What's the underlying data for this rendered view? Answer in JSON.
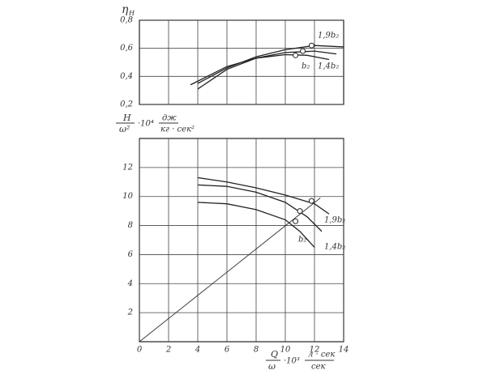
{
  "chart_data": [
    {
      "type": "line",
      "y_label": "η",
      "y_label_sub": "H",
      "xlim": [
        0,
        14
      ],
      "xticks": [
        2,
        4,
        6,
        8,
        10,
        12
      ],
      "xtick_labels": false,
      "ylim": [
        0.2,
        0.8
      ],
      "yticks": [
        {
          "value": 0.2,
          "label": "0,2"
        },
        {
          "value": 0.4,
          "label": "0,4"
        },
        {
          "value": 0.6,
          "label": "0,6"
        },
        {
          "value": 0.8,
          "label": "0,8"
        }
      ],
      "grid": true,
      "series": [
        {
          "name": "1,9b₂",
          "color": "#222",
          "x": [
            4,
            6,
            8,
            10,
            12,
            14
          ],
          "values": [
            0.35,
            0.46,
            0.54,
            0.59,
            0.62,
            0.61
          ],
          "marker": {
            "x": 11.8,
            "y": 0.62
          }
        },
        {
          "name": "1,4b₂",
          "color": "#222",
          "x": [
            4,
            6,
            8,
            10,
            12,
            13.5
          ],
          "values": [
            0.31,
            0.45,
            0.53,
            0.57,
            0.58,
            0.56
          ],
          "marker": {
            "x": 11.2,
            "y": 0.58
          }
        },
        {
          "name": "b₂",
          "color": "#222",
          "x": [
            3.5,
            6,
            8,
            10,
            11.5,
            13
          ],
          "values": [
            0.34,
            0.47,
            0.53,
            0.555,
            0.55,
            0.52
          ],
          "marker": {
            "x": 10.7,
            "y": 0.55
          }
        }
      ]
    },
    {
      "type": "line",
      "y_label": "H",
      "y_label_den": "ω²",
      "y_label_mult": "·10⁴",
      "y_label_unit_num": "дж",
      "y_label_unit_den": "кг · сек²",
      "x_label": "Q",
      "x_label_den": "ω",
      "x_label_mult": "·10³",
      "x_label_unit_num": "л · сек",
      "x_label_unit_den": "сек",
      "xlim": [
        0,
        14
      ],
      "xticks": [
        0,
        2,
        4,
        6,
        8,
        10,
        12,
        14
      ],
      "xtick_labels": true,
      "ylim": [
        0,
        14
      ],
      "yticks": [
        2,
        4,
        6,
        8,
        10,
        12
      ],
      "grid": true,
      "series": [
        {
          "name": "1,9b₂",
          "color": "#222",
          "x": [
            4,
            6,
            8,
            10,
            12,
            13
          ],
          "values": [
            11.3,
            11.0,
            10.6,
            10.1,
            9.5,
            8.8
          ],
          "marker": {
            "x": 11.8,
            "y": 9.7
          }
        },
        {
          "name": "1,4b₂",
          "color": "#222",
          "x": [
            4,
            6,
            8,
            10,
            11.5,
            12.5
          ],
          "values": [
            10.8,
            10.7,
            10.3,
            9.6,
            8.6,
            7.6
          ],
          "marker": {
            "x": 11.0,
            "y": 9.0
          }
        },
        {
          "name": "b₂",
          "color": "#222",
          "x": [
            4,
            6,
            8,
            10,
            11,
            12
          ],
          "values": [
            9.6,
            9.5,
            9.1,
            8.4,
            7.6,
            6.5
          ],
          "marker": {
            "x": 10.7,
            "y": 8.3
          }
        }
      ],
      "reference_line": {
        "x": [
          0,
          12.4
        ],
        "values": [
          0,
          9.9
        ]
      }
    }
  ]
}
